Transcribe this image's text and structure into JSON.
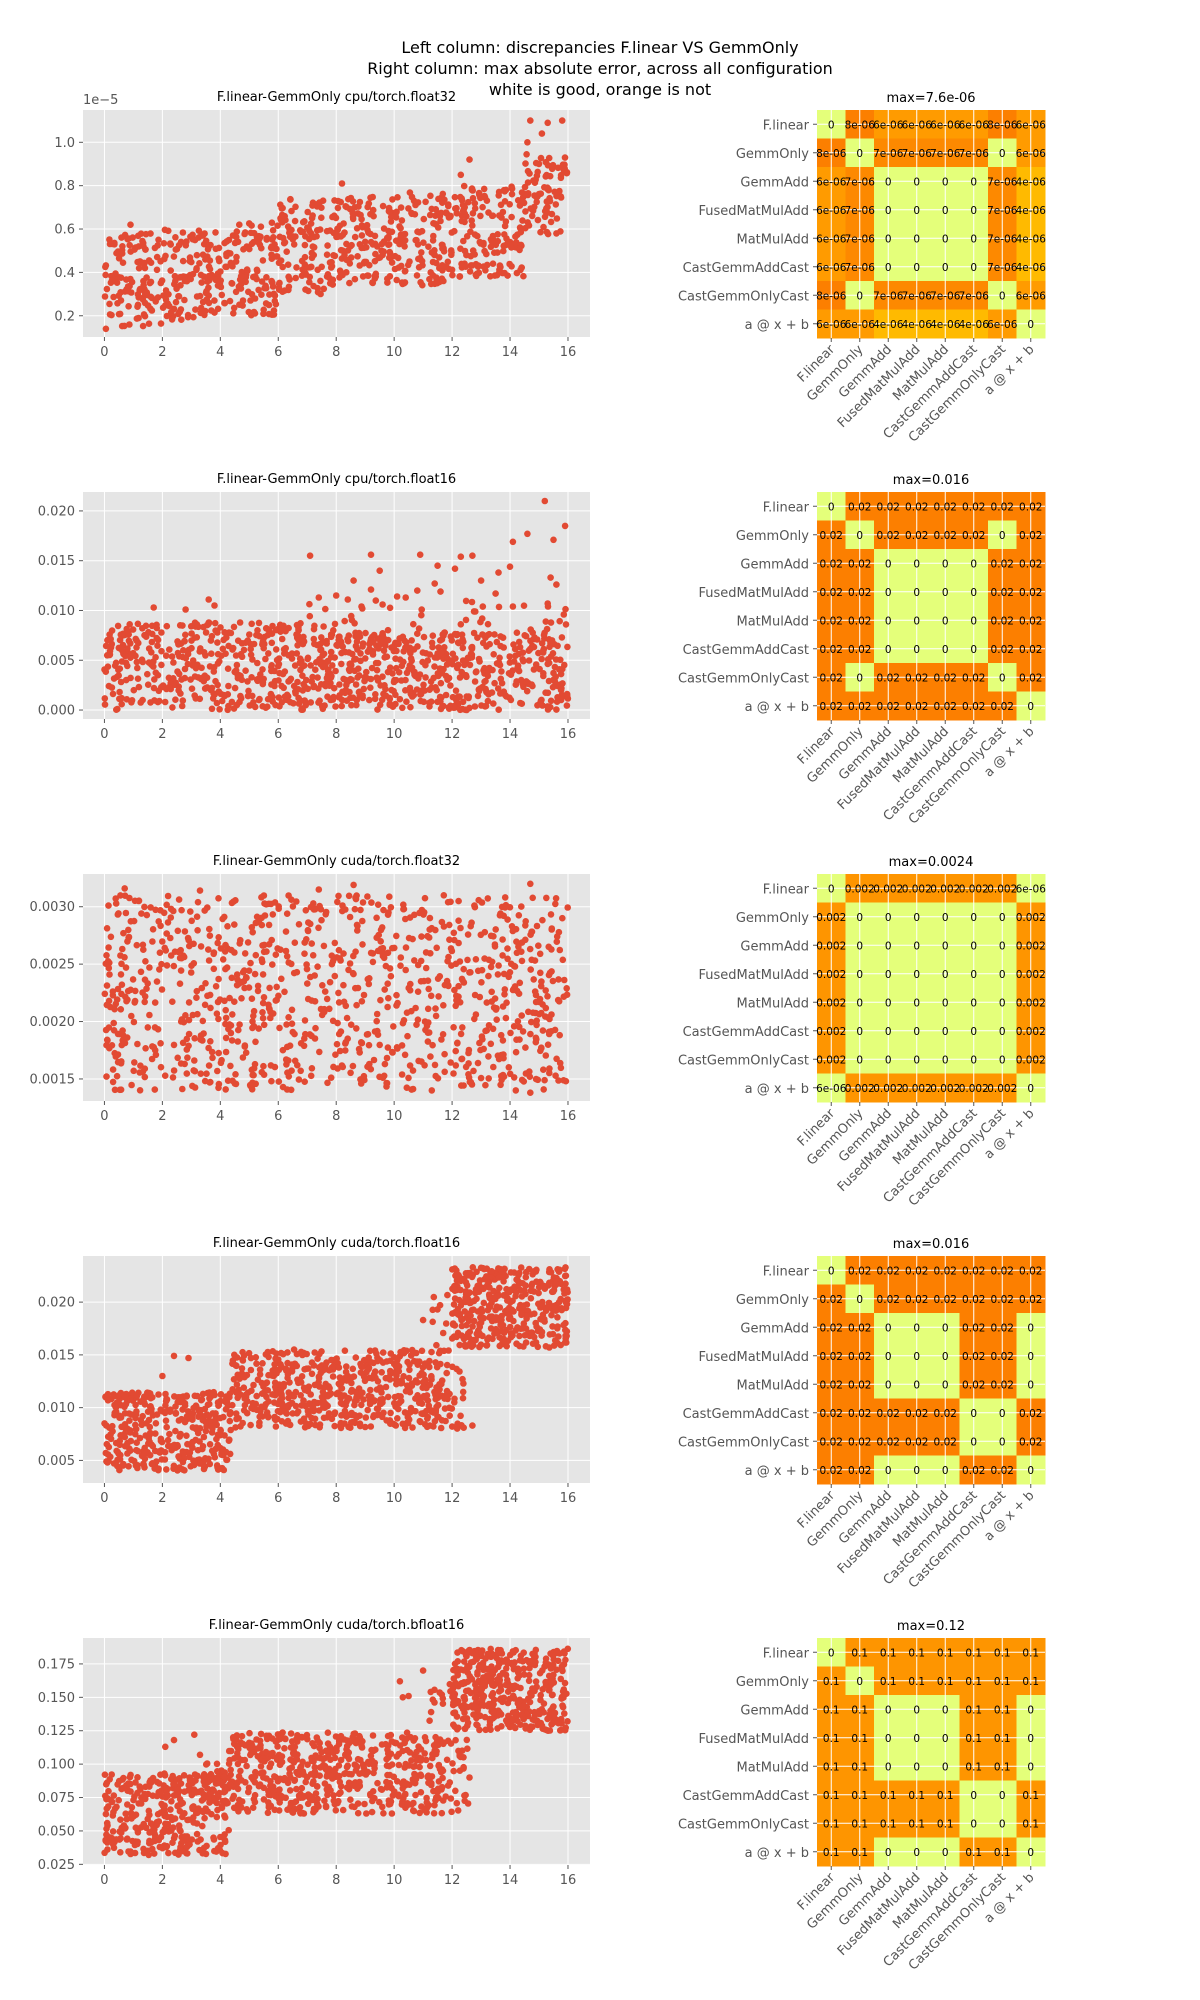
{
  "figure": {
    "suptitle": [
      "Left column: discrepancies F.linear VS GemmOnly",
      "Right column: max absolute error, across all configuration",
      "white is good, orange is not"
    ],
    "colors": {
      "marker": "#e24a33",
      "axes_bg": "#e5e5e5",
      "grid": "#ffffff",
      "cmap_low": "#e4ff7a",
      "cmap_high": "#fc7f00"
    }
  },
  "chart_data": [
    {
      "type": "scatter",
      "title": "F.linear-GemmOnly cpu/torch.float32",
      "offset_text": "1e−5",
      "xlim": [
        -0.74,
        16.76
      ],
      "ylim": [
        1.02e-06,
        1.149e-05
      ],
      "x_ticks": [
        0,
        2,
        4,
        6,
        8,
        10,
        12,
        14,
        16
      ],
      "x_tick_labels": [
        "0",
        "2",
        "4",
        "6",
        "8",
        "10",
        "12",
        "14",
        "16"
      ],
      "y_ticks": [
        2e-06,
        4e-06,
        6e-06,
        8e-06,
        1e-05
      ],
      "y_tick_labels": [
        "0.2",
        "0.4",
        "0.6",
        "0.8",
        "1.0"
      ],
      "grid": true,
      "point_bands": [
        [
          0,
          2,
          1.5e-06,
          5.8e-06,
          120
        ],
        [
          2,
          4,
          1.8e-06,
          6e-06,
          120
        ],
        [
          4,
          6,
          2e-06,
          6.3e-06,
          120
        ],
        [
          6,
          8,
          3e-06,
          7.5e-06,
          120
        ],
        [
          8,
          10,
          3.5e-06,
          7.6e-06,
          120
        ],
        [
          10,
          12,
          3.4e-06,
          7.7e-06,
          120
        ],
        [
          12,
          14.5,
          3.8e-06,
          8e-06,
          150
        ],
        [
          14.5,
          16,
          5.7e-06,
          9.5e-06,
          80
        ]
      ],
      "points": [
        [
          14.7,
          1.1e-05
        ],
        [
          15.3,
          1.09e-05
        ],
        [
          15.8,
          1.1e-05
        ],
        [
          15.1,
          1.04e-05
        ],
        [
          14.6,
          1e-05
        ],
        [
          12.6,
          9.2e-06
        ],
        [
          12.3,
          8.5e-06
        ],
        [
          8.2,
          8.1e-06
        ],
        [
          0.9,
          6.2e-06
        ],
        [
          0.05,
          1.4e-06
        ]
      ]
    },
    {
      "type": "scatter",
      "title": "F.linear-GemmOnly cpu/torch.float16",
      "xlim": [
        -0.74,
        16.76
      ],
      "ylim": [
        -0.0009,
        0.0219
      ],
      "x_ticks": [
        0,
        2,
        4,
        6,
        8,
        10,
        12,
        14,
        16
      ],
      "x_tick_labels": [
        "0",
        "2",
        "4",
        "6",
        "8",
        "10",
        "12",
        "14",
        "16"
      ],
      "y_ticks": [
        0,
        0.005,
        0.01,
        0.015,
        0.02
      ],
      "y_tick_labels": [
        "0.000",
        "0.005",
        "0.010",
        "0.015",
        "0.020"
      ],
      "grid": true,
      "point_bands": [
        [
          0,
          7,
          0,
          0.0088,
          420
        ],
        [
          7,
          16,
          0,
          0.0078,
          560
        ],
        [
          7,
          16,
          0.008,
          0.011,
          40
        ]
      ],
      "points": [
        [
          7.1,
          0.0155
        ],
        [
          9.2,
          0.0156
        ],
        [
          10.9,
          0.0156
        ],
        [
          12.3,
          0.0154
        ],
        [
          12.7,
          0.0155
        ],
        [
          15.2,
          0.021
        ],
        [
          15.9,
          0.0185
        ],
        [
          14.6,
          0.0177
        ],
        [
          15.5,
          0.0171
        ],
        [
          14.1,
          0.0169
        ],
        [
          9.5,
          0.014
        ],
        [
          11.5,
          0.0145
        ],
        [
          12.1,
          0.0142
        ],
        [
          13.6,
          0.0138
        ],
        [
          14,
          0.0144
        ],
        [
          8.6,
          0.013
        ],
        [
          11.4,
          0.0127
        ],
        [
          13.0,
          0.013
        ],
        [
          15.4,
          0.0133
        ],
        [
          15.6,
          0.0126
        ],
        [
          9.2,
          0.0121
        ],
        [
          10.8,
          0.012
        ],
        [
          11.6,
          0.0119
        ],
        [
          13.5,
          0.0117
        ],
        [
          9.6,
          0.0106
        ],
        [
          10.1,
          0.0114
        ],
        [
          8,
          0.0115
        ],
        [
          7.4,
          0.0113
        ],
        [
          8.4,
          0.0111
        ],
        [
          3.6,
          0.0111
        ],
        [
          1.7,
          0.0103
        ],
        [
          2.8,
          0.0101
        ],
        [
          3.8,
          0.0105
        ],
        [
          10.4,
          0.0113
        ],
        [
          12.8,
          0.0099
        ],
        [
          15.3,
          0.0107
        ],
        [
          14.1,
          0.0104
        ],
        [
          8.9,
          0.0102
        ]
      ]
    },
    {
      "type": "scatter",
      "title": "F.linear-GemmOnly cuda/torch.float32",
      "xlim": [
        -0.74,
        16.76
      ],
      "ylim": [
        0.001308,
        0.003285
      ],
      "x_ticks": [
        0,
        2,
        4,
        6,
        8,
        10,
        12,
        14,
        16
      ],
      "x_tick_labels": [
        "0",
        "2",
        "4",
        "6",
        "8",
        "10",
        "12",
        "14",
        "16"
      ],
      "y_ticks": [
        0.0015,
        0.002,
        0.0025,
        0.003
      ],
      "y_tick_labels": [
        "0.0015",
        "0.0020",
        "0.0025",
        "0.0030"
      ],
      "grid": true,
      "point_bands": [
        [
          0,
          16,
          0.0014,
          0.0031,
          1000
        ]
      ],
      "points": [
        [
          0.7,
          0.00316
        ],
        [
          3.3,
          0.00314
        ],
        [
          7.4,
          0.00315
        ],
        [
          8.6,
          0.00319
        ],
        [
          14.7,
          0.0032
        ],
        [
          5.1,
          0.00141
        ],
        [
          14.7,
          0.00138
        ],
        [
          11.3,
          0.0014
        ],
        [
          14.2,
          0.0014
        ]
      ]
    },
    {
      "type": "scatter",
      "title": "F.linear-GemmOnly cuda/torch.float16",
      "xlim": [
        -0.74,
        16.76
      ],
      "ylim": [
        0.00286,
        0.02437
      ],
      "x_ticks": [
        0,
        2,
        4,
        6,
        8,
        10,
        12,
        14,
        16
      ],
      "x_tick_labels": [
        "0",
        "2",
        "4",
        "6",
        "8",
        "10",
        "12",
        "14",
        "16"
      ],
      "y_ticks": [
        0.005,
        0.01,
        0.015,
        0.02
      ],
      "y_tick_labels": [
        "0.005",
        "0.010",
        "0.015",
        "0.020"
      ],
      "grid": true,
      "point_bands": [
        [
          0,
          4.4,
          0.004,
          0.0115,
          330
        ],
        [
          3,
          4.4,
          0.008,
          0.012,
          30
        ],
        [
          4.4,
          11.6,
          0.008,
          0.0155,
          560
        ],
        [
          11.6,
          12.4,
          0.008,
          0.014,
          30
        ],
        [
          11.3,
          12,
          0.014,
          0.021,
          15
        ],
        [
          12,
          16,
          0.0157,
          0.0233,
          400
        ]
      ],
      "points": [
        [
          2.4,
          0.0149
        ],
        [
          2.9,
          0.0147
        ],
        [
          2,
          0.013
        ],
        [
          12.4,
          0.0081
        ],
        [
          12.7,
          0.0083
        ],
        [
          11,
          0.0183
        ]
      ]
    },
    {
      "type": "scatter",
      "title": "F.linear-GemmOnly cuda/torch.bfloat16",
      "xlim": [
        -0.74,
        16.76
      ],
      "ylim": [
        0.0245,
        0.1944
      ],
      "x_ticks": [
        0,
        2,
        4,
        6,
        8,
        10,
        12,
        14,
        16
      ],
      "x_tick_labels": [
        "0",
        "2",
        "4",
        "6",
        "8",
        "10",
        "12",
        "14",
        "16"
      ],
      "y_ticks": [
        0.025,
        0.05,
        0.075,
        0.1,
        0.125,
        0.15,
        0.175
      ],
      "y_tick_labels": [
        "0.025",
        "0.050",
        "0.075",
        "0.100",
        "0.125",
        "0.150",
        "0.175"
      ],
      "grid": true,
      "point_bands": [
        [
          0,
          4.3,
          0.032,
          0.093,
          330
        ],
        [
          3.5,
          4.3,
          0.07,
          0.103,
          25
        ],
        [
          4.3,
          11.7,
          0.063,
          0.124,
          560
        ],
        [
          11.7,
          12.6,
          0.062,
          0.12,
          30
        ],
        [
          11.2,
          12,
          0.13,
          0.165,
          12
        ],
        [
          12,
          16,
          0.125,
          0.187,
          400
        ]
      ],
      "points": [
        [
          2.1,
          0.113
        ],
        [
          2.4,
          0.118
        ],
        [
          3.1,
          0.122
        ],
        [
          3.3,
          0.107
        ],
        [
          10.2,
          0.162
        ],
        [
          11,
          0.17
        ],
        [
          10.3,
          0.15
        ],
        [
          10.5,
          0.151
        ],
        [
          12.6,
          0.09
        ]
      ]
    },
    {
      "type": "heatmap",
      "title": "max=7.6e-06",
      "vmax": 7.6e-06,
      "labels": [
        "F.linear",
        "GemmOnly",
        "GemmAdd",
        "FusedMatMulAdd",
        "MatMulAdd",
        "CastGemmAddCast",
        "CastGemmOnlyCast",
        "a @ x + b"
      ],
      "cells": [
        [
          "0",
          "8e-06",
          "6e-06",
          "6e-06",
          "6e-06",
          "6e-06",
          "8e-06",
          "6e-06"
        ],
        [
          "8e-06",
          "0",
          "7e-06",
          "7e-06",
          "7e-06",
          "7e-06",
          "0",
          "6e-06"
        ],
        [
          "6e-06",
          "7e-06",
          "0",
          "0",
          "0",
          "0",
          "7e-06",
          "4e-06"
        ],
        [
          "6e-06",
          "7e-06",
          "0",
          "0",
          "0",
          "0",
          "7e-06",
          "4e-06"
        ],
        [
          "6e-06",
          "7e-06",
          "0",
          "0",
          "0",
          "0",
          "7e-06",
          "4e-06"
        ],
        [
          "6e-06",
          "7e-06",
          "0",
          "0",
          "0",
          "0",
          "7e-06",
          "4e-06"
        ],
        [
          "8e-06",
          "0",
          "7e-06",
          "7e-06",
          "7e-06",
          "7e-06",
          "0",
          "6e-06"
        ],
        [
          "6e-06",
          "6e-06",
          "4e-06",
          "4e-06",
          "4e-06",
          "4e-06",
          "6e-06",
          "0"
        ]
      ]
    },
    {
      "type": "heatmap",
      "title": "max=0.016",
      "vmax": 0.016,
      "labels": [
        "F.linear",
        "GemmOnly",
        "GemmAdd",
        "FusedMatMulAdd",
        "MatMulAdd",
        "CastGemmAddCast",
        "CastGemmOnlyCast",
        "a @ x + b"
      ],
      "cells": [
        [
          "0",
          "0.02",
          "0.02",
          "0.02",
          "0.02",
          "0.02",
          "0.02",
          "0.02"
        ],
        [
          "0.02",
          "0",
          "0.02",
          "0.02",
          "0.02",
          "0.02",
          "0",
          "0.02"
        ],
        [
          "0.02",
          "0.02",
          "0",
          "0",
          "0",
          "0",
          "0.02",
          "0.02"
        ],
        [
          "0.02",
          "0.02",
          "0",
          "0",
          "0",
          "0",
          "0.02",
          "0.02"
        ],
        [
          "0.02",
          "0.02",
          "0",
          "0",
          "0",
          "0",
          "0.02",
          "0.02"
        ],
        [
          "0.02",
          "0.02",
          "0",
          "0",
          "0",
          "0",
          "0.02",
          "0.02"
        ],
        [
          "0.02",
          "0",
          "0.02",
          "0.02",
          "0.02",
          "0.02",
          "0",
          "0.02"
        ],
        [
          "0.02",
          "0.02",
          "0.02",
          "0.02",
          "0.02",
          "0.02",
          "0.02",
          "0"
        ]
      ]
    },
    {
      "type": "heatmap",
      "title": "max=0.0024",
      "vmax": 0.0024,
      "labels": [
        "F.linear",
        "GemmOnly",
        "GemmAdd",
        "FusedMatMulAdd",
        "MatMulAdd",
        "CastGemmAddCast",
        "CastGemmOnlyCast",
        "a @ x + b"
      ],
      "cells": [
        [
          "0",
          "0.002",
          "0.002",
          "0.002",
          "0.002",
          "0.002",
          "0.002",
          "6e-06"
        ],
        [
          "0.002",
          "0",
          "0",
          "0",
          "0",
          "0",
          "0",
          "0.002"
        ],
        [
          "0.002",
          "0",
          "0",
          "0",
          "0",
          "0",
          "0",
          "0.002"
        ],
        [
          "0.002",
          "0",
          "0",
          "0",
          "0",
          "0",
          "0",
          "0.002"
        ],
        [
          "0.002",
          "0",
          "0",
          "0",
          "0",
          "0",
          "0",
          "0.002"
        ],
        [
          "0.002",
          "0",
          "0",
          "0",
          "0",
          "0",
          "0",
          "0.002"
        ],
        [
          "0.002",
          "0",
          "0",
          "0",
          "0",
          "0",
          "0",
          "0.002"
        ],
        [
          "6e-06",
          "0.002",
          "0.002",
          "0.002",
          "0.002",
          "0.002",
          "0.002",
          "0"
        ]
      ]
    },
    {
      "type": "heatmap",
      "title": "max=0.016",
      "vmax": 0.016,
      "labels": [
        "F.linear",
        "GemmOnly",
        "GemmAdd",
        "FusedMatMulAdd",
        "MatMulAdd",
        "CastGemmAddCast",
        "CastGemmOnlyCast",
        "a @ x + b"
      ],
      "cells": [
        [
          "0",
          "0.02",
          "0.02",
          "0.02",
          "0.02",
          "0.02",
          "0.02",
          "0.02"
        ],
        [
          "0.02",
          "0",
          "0.02",
          "0.02",
          "0.02",
          "0.02",
          "0.02",
          "0.02"
        ],
        [
          "0.02",
          "0.02",
          "0",
          "0",
          "0",
          "0.02",
          "0.02",
          "0"
        ],
        [
          "0.02",
          "0.02",
          "0",
          "0",
          "0",
          "0.02",
          "0.02",
          "0"
        ],
        [
          "0.02",
          "0.02",
          "0",
          "0",
          "0",
          "0.02",
          "0.02",
          "0"
        ],
        [
          "0.02",
          "0.02",
          "0.02",
          "0.02",
          "0.02",
          "0",
          "0",
          "0.02"
        ],
        [
          "0.02",
          "0.02",
          "0.02",
          "0.02",
          "0.02",
          "0",
          "0",
          "0.02"
        ],
        [
          "0.02",
          "0.02",
          "0",
          "0",
          "0",
          "0.02",
          "0.02",
          "0"
        ]
      ]
    },
    {
      "type": "heatmap",
      "title": "max=0.12",
      "vmax": 0.12,
      "labels": [
        "F.linear",
        "GemmOnly",
        "GemmAdd",
        "FusedMatMulAdd",
        "MatMulAdd",
        "CastGemmAddCast",
        "CastGemmOnlyCast",
        "a @ x + b"
      ],
      "cells": [
        [
          "0",
          "0.1",
          "0.1",
          "0.1",
          "0.1",
          "0.1",
          "0.1",
          "0.1"
        ],
        [
          "0.1",
          "0",
          "0.1",
          "0.1",
          "0.1",
          "0.1",
          "0.1",
          "0.1"
        ],
        [
          "0.1",
          "0.1",
          "0",
          "0",
          "0",
          "0.1",
          "0.1",
          "0"
        ],
        [
          "0.1",
          "0.1",
          "0",
          "0",
          "0",
          "0.1",
          "0.1",
          "0"
        ],
        [
          "0.1",
          "0.1",
          "0",
          "0",
          "0",
          "0.1",
          "0.1",
          "0"
        ],
        [
          "0.1",
          "0.1",
          "0.1",
          "0.1",
          "0.1",
          "0",
          "0",
          "0.1"
        ],
        [
          "0.1",
          "0.1",
          "0.1",
          "0.1",
          "0.1",
          "0",
          "0",
          "0.1"
        ],
        [
          "0.1",
          "0.1",
          "0",
          "0",
          "0",
          "0.1",
          "0.1",
          "0"
        ]
      ]
    }
  ]
}
